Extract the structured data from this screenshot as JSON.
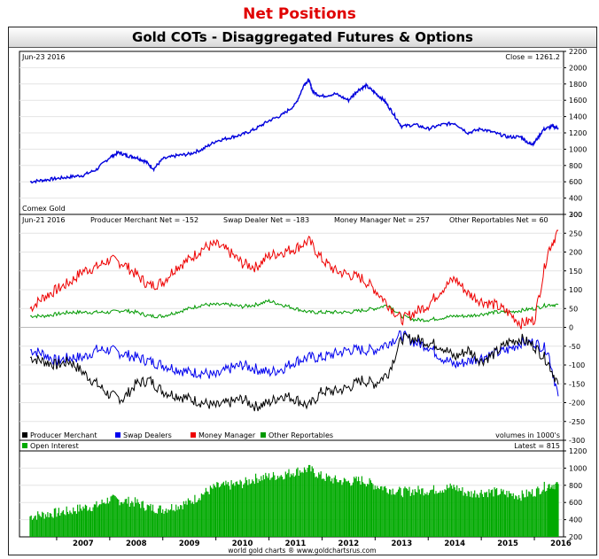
{
  "page_title": "Net Positions",
  "chart_title": "Gold COTs - Disaggregated Futures & Options",
  "price_panel": {
    "date_label": "Jun-23 2016",
    "close_label": "Close = 1261.2",
    "series_label": "Comex Gold"
  },
  "net_panel": {
    "date_label": "Jun-21 2016",
    "readouts": [
      "Producer Merchant Net = -152",
      "Swap Dealer Net = -183",
      "Money Manager Net = 257",
      "Other Reportables Net = 60"
    ],
    "legend": [
      "Producer Merchant",
      "Swap Dealers",
      "Money Manager",
      "Other Reportables"
    ],
    "units_note": "volumes in 1000's"
  },
  "oi_panel": {
    "legend": [
      "Open Interest"
    ],
    "latest_label": "Latest = 815"
  },
  "credit": "world gold charts ® www.goldchartsrus.com",
  "colors": {
    "price": "#0000dd",
    "producer": "#000000",
    "swap": "#0000ee",
    "money": "#ee0000",
    "other": "#009900",
    "open_interest": "#00aa00",
    "title_red": "#e00000"
  },
  "chart_data": [
    {
      "type": "line",
      "x": [
        2006.5,
        2006.75,
        2007.0,
        2007.25,
        2007.5,
        2007.75,
        2008.0,
        2008.17,
        2008.33,
        2008.5,
        2008.67,
        2008.83,
        2009.0,
        2009.25,
        2009.5,
        2009.75,
        2010.0,
        2010.25,
        2010.5,
        2010.75,
        2011.0,
        2011.25,
        2011.5,
        2011.67,
        2011.75,
        2011.83,
        2012.0,
        2012.25,
        2012.5,
        2012.67,
        2012.83,
        2013.0,
        2013.17,
        2013.33,
        2013.5,
        2013.75,
        2014.0,
        2014.25,
        2014.5,
        2014.75,
        2015.0,
        2015.25,
        2015.5,
        2015.75,
        2015.92,
        2016.0,
        2016.17,
        2016.33,
        2016.45
      ],
      "series": [
        {
          "name": "Comex Gold",
          "values": [
            600,
            620,
            640,
            660,
            680,
            750,
            900,
            960,
            920,
            900,
            850,
            760,
            880,
            920,
            940,
            1000,
            1100,
            1140,
            1180,
            1250,
            1350,
            1420,
            1550,
            1800,
            1850,
            1700,
            1650,
            1680,
            1600,
            1720,
            1780,
            1690,
            1600,
            1450,
            1280,
            1300,
            1250,
            1300,
            1320,
            1200,
            1250,
            1200,
            1150,
            1150,
            1060,
            1080,
            1240,
            1280,
            1261.2
          ]
        }
      ],
      "title": "Gold COTs - Disaggregated Futures & Options",
      "ylim": [
        200,
        2200
      ],
      "yticks": [
        200,
        400,
        600,
        800,
        1000,
        1200,
        1400,
        1600,
        1800,
        2000,
        2200
      ],
      "grid": true
    },
    {
      "type": "line",
      "x": [
        2006.5,
        2006.75,
        2007.0,
        2007.25,
        2007.5,
        2007.75,
        2008.0,
        2008.25,
        2008.5,
        2008.75,
        2009.0,
        2009.25,
        2009.5,
        2009.75,
        2010.0,
        2010.25,
        2010.5,
        2010.75,
        2011.0,
        2011.25,
        2011.5,
        2011.75,
        2012.0,
        2012.25,
        2012.5,
        2012.75,
        2013.0,
        2013.25,
        2013.5,
        2013.75,
        2014.0,
        2014.25,
        2014.5,
        2014.75,
        2015.0,
        2015.25,
        2015.5,
        2015.75,
        2016.0,
        2016.25,
        2016.45
      ],
      "series": [
        {
          "name": "Producer Merchant",
          "values": [
            -80,
            -90,
            -100,
            -90,
            -120,
            -150,
            -180,
            -190,
            -150,
            -140,
            -170,
            -180,
            -190,
            -200,
            -210,
            -200,
            -190,
            -210,
            -200,
            -180,
            -190,
            -210,
            -170,
            -170,
            -160,
            -140,
            -150,
            -120,
            -30,
            -30,
            -40,
            -50,
            -80,
            -60,
            -90,
            -70,
            -40,
            -30,
            -50,
            -90,
            -152
          ]
        },
        {
          "name": "Swap Dealers",
          "values": [
            -60,
            -70,
            -90,
            -80,
            -80,
            -60,
            -60,
            -70,
            -80,
            -90,
            -100,
            -110,
            -120,
            -120,
            -130,
            -110,
            -100,
            -110,
            -120,
            -110,
            -90,
            -80,
            -80,
            -70,
            -60,
            -60,
            -60,
            -40,
            -20,
            -40,
            -50,
            -80,
            -100,
            -90,
            -80,
            -70,
            -60,
            -40,
            -40,
            -60,
            -183
          ]
        },
        {
          "name": "Money Manager",
          "values": [
            50,
            80,
            100,
            120,
            150,
            160,
            180,
            170,
            140,
            110,
            120,
            160,
            180,
            210,
            220,
            200,
            170,
            160,
            190,
            200,
            210,
            230,
            180,
            150,
            140,
            130,
            100,
            60,
            20,
            40,
            60,
            100,
            130,
            90,
            70,
            60,
            40,
            10,
            20,
            200,
            257
          ]
        },
        {
          "name": "Other Reportables",
          "values": [
            30,
            30,
            35,
            40,
            40,
            40,
            40,
            45,
            40,
            30,
            30,
            40,
            50,
            60,
            60,
            60,
            55,
            60,
            70,
            60,
            50,
            40,
            40,
            40,
            40,
            45,
            50,
            60,
            30,
            20,
            20,
            25,
            30,
            30,
            35,
            40,
            40,
            45,
            50,
            60,
            60
          ]
        }
      ],
      "ylim": [
        -300,
        300
      ],
      "yticks": [
        -300,
        -250,
        -200,
        -150,
        -100,
        -50,
        0,
        50,
        100,
        150,
        200,
        250,
        300
      ],
      "ylabel": "volumes in 1000's",
      "grid": true
    },
    {
      "type": "bar",
      "x": [
        2006.5,
        2006.75,
        2007.0,
        2007.25,
        2007.5,
        2007.75,
        2008.0,
        2008.25,
        2008.5,
        2008.75,
        2009.0,
        2009.25,
        2009.5,
        2009.75,
        2010.0,
        2010.25,
        2010.5,
        2010.75,
        2011.0,
        2011.25,
        2011.5,
        2011.75,
        2012.0,
        2012.25,
        2012.5,
        2012.75,
        2013.0,
        2013.25,
        2013.5,
        2013.75,
        2014.0,
        2014.25,
        2014.5,
        2014.75,
        2015.0,
        2015.25,
        2015.5,
        2015.75,
        2016.0,
        2016.25,
        2016.45
      ],
      "series": [
        {
          "name": "Open Interest",
          "values": [
            440,
            460,
            480,
            500,
            540,
            560,
            640,
            620,
            600,
            540,
            520,
            560,
            600,
            700,
            780,
            800,
            820,
            880,
            900,
            920,
            960,
            990,
            900,
            860,
            840,
            860,
            800,
            760,
            720,
            740,
            740,
            760,
            780,
            700,
            720,
            720,
            700,
            680,
            720,
            800,
            815
          ]
        }
      ],
      "ylim": [
        200,
        1200
      ],
      "yticks": [
        200,
        400,
        600,
        800,
        1000,
        1200
      ],
      "grid": true
    }
  ],
  "x_axis": {
    "range": [
      2006.3,
      2016.55
    ],
    "year_labels": [
      "2007",
      "2008",
      "2009",
      "2010",
      "2011",
      "2012",
      "2013",
      "2014",
      "2015",
      "2016"
    ]
  }
}
